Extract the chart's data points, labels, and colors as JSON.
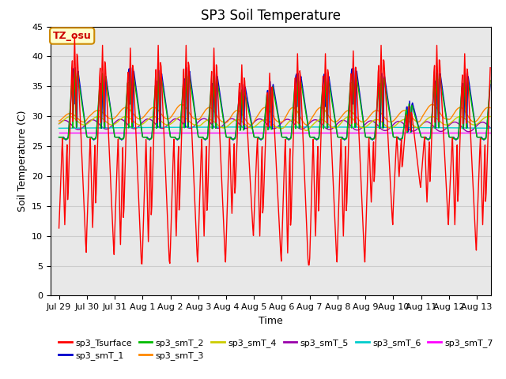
{
  "title": "SP3 Soil Temperature",
  "xlabel": "Time",
  "ylabel": "Soil Temperature (C)",
  "ylim": [
    0,
    45
  ],
  "total_days": 15.5,
  "annotation_text": "TZ_osu",
  "background_color": "#ffffff",
  "plot_bg_color": "#e8e8e8",
  "legend_entries": [
    "sp3_Tsurface",
    "sp3_smT_1",
    "sp3_smT_2",
    "sp3_smT_3",
    "sp3_smT_4",
    "sp3_smT_5",
    "sp3_smT_6",
    "sp3_smT_7"
  ],
  "line_colors": [
    "#ff0000",
    "#0000cc",
    "#00bb00",
    "#ff8800",
    "#cccc00",
    "#9900aa",
    "#00cccc",
    "#ff00ff"
  ],
  "xtick_labels": [
    "Jul 29",
    "Jul 30",
    "Jul 31",
    "Aug 1",
    "Aug 2",
    "Aug 3",
    "Aug 4",
    "Aug 5",
    "Aug 6",
    "Aug 7",
    "Aug 8",
    "Aug 9",
    "Aug 10",
    "Aug 11",
    "Aug 12",
    "Aug 13"
  ],
  "xtick_positions": [
    0,
    1,
    2,
    3,
    4,
    5,
    6,
    7,
    8,
    9,
    10,
    11,
    12,
    13,
    14,
    15
  ],
  "ytick_positions": [
    0,
    5,
    10,
    15,
    20,
    25,
    30,
    35,
    40,
    45
  ],
  "title_fontsize": 12,
  "axis_label_fontsize": 9,
  "tick_fontsize": 8,
  "legend_fontsize": 8,
  "grid_color": "#cccccc",
  "dt_hours": 0.5
}
